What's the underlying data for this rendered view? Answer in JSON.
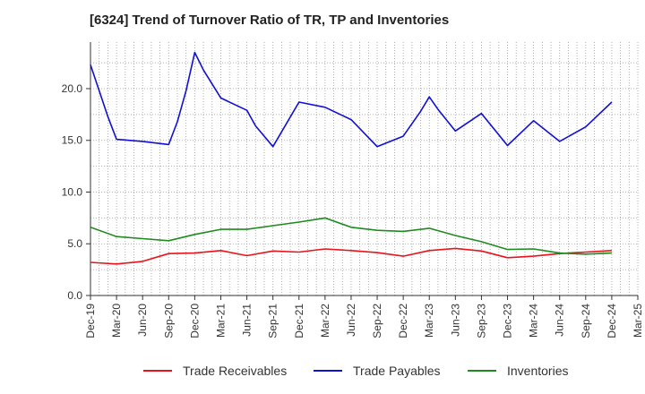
{
  "title": "[6324]  Trend of Turnover Ratio of TR, TP and Inventories",
  "chart_data": {
    "type": "line",
    "title": "[6324]  Trend of Turnover Ratio of TR, TP and Inventories",
    "xlabel": "",
    "ylabel": "",
    "ylim": [
      0,
      24.5
    ],
    "yticks": [
      "0.0",
      "5.0",
      "10.0",
      "15.0",
      "20.0"
    ],
    "ytick_values": [
      0,
      5,
      10,
      15,
      20
    ],
    "xticks": [
      "Dec-19",
      "Mar-20",
      "Jun-20",
      "Sep-20",
      "Dec-20",
      "Mar-21",
      "Jun-21",
      "Sep-21",
      "Dec-21",
      "Mar-22",
      "Jun-22",
      "Sep-22",
      "Dec-22",
      "Mar-23",
      "Jun-23",
      "Sep-23",
      "Dec-23",
      "Mar-24",
      "Jun-24",
      "Sep-24",
      "Dec-24",
      "Mar-25"
    ],
    "grid": "dotted vertical and horizontal",
    "legend_position": "bottom",
    "series": [
      {
        "name": "Trade Receivables",
        "color": "#e8141c",
        "points": [
          [
            "Dec-19",
            3.2
          ],
          [
            "Mar-20",
            3.05
          ],
          [
            "Jun-20",
            3.3
          ],
          [
            "Sep-20",
            4.05
          ],
          [
            "Dec-20",
            4.1
          ],
          [
            "Mar-21",
            4.35
          ],
          [
            "Jun-21",
            3.85
          ],
          [
            "Sep-21",
            4.3
          ],
          [
            "Dec-21",
            4.2
          ],
          [
            "Mar-22",
            4.5
          ],
          [
            "Jun-22",
            4.35
          ],
          [
            "Sep-22",
            4.15
          ],
          [
            "Dec-22",
            3.8
          ],
          [
            "Mar-23",
            4.35
          ],
          [
            "Jun-23",
            4.55
          ],
          [
            "Sep-23",
            4.3
          ],
          [
            "Dec-23",
            3.65
          ],
          [
            "Mar-24",
            3.8
          ],
          [
            "Jun-24",
            4.05
          ],
          [
            "Sep-24",
            4.2
          ],
          [
            "Dec-24",
            4.35
          ]
        ]
      },
      {
        "name": "Trade Payables",
        "color": "#1010d6",
        "points": [
          [
            "Dec-19",
            22.3
          ],
          [
            "Jan-20",
            19.8
          ],
          [
            "Feb-20",
            17.3
          ],
          [
            "Mar-20",
            15.1
          ],
          [
            "Jun-20",
            14.9
          ],
          [
            "Sep-20",
            14.6
          ],
          [
            "Oct-20",
            16.8
          ],
          [
            "Nov-20",
            19.8
          ],
          [
            "Dec-20",
            23.5
          ],
          [
            "Jan-21",
            21.8
          ],
          [
            "Mar-21",
            19.1
          ],
          [
            "Jun-21",
            17.9
          ],
          [
            "Jul-21",
            16.4
          ],
          [
            "Sep-21",
            14.4
          ],
          [
            "Dec-21",
            18.7
          ],
          [
            "Mar-22",
            18.2
          ],
          [
            "Jun-22",
            17.0
          ],
          [
            "Sep-22",
            14.4
          ],
          [
            "Dec-22",
            15.4
          ],
          [
            "Feb-23",
            17.8
          ],
          [
            "Mar-23",
            19.2
          ],
          [
            "Apr-23",
            18.0
          ],
          [
            "Jun-23",
            15.9
          ],
          [
            "Sep-23",
            17.6
          ],
          [
            "Dec-23",
            14.5
          ],
          [
            "Mar-24",
            16.9
          ],
          [
            "Jun-24",
            14.9
          ],
          [
            "Sep-24",
            16.3
          ],
          [
            "Dec-24",
            18.7
          ]
        ]
      },
      {
        "name": "Inventories",
        "color": "#1f8a1f",
        "points": [
          [
            "Dec-19",
            6.6
          ],
          [
            "Mar-20",
            5.7
          ],
          [
            "Jun-20",
            5.5
          ],
          [
            "Sep-20",
            5.3
          ],
          [
            "Dec-20",
            5.9
          ],
          [
            "Mar-21",
            6.4
          ],
          [
            "Jun-21",
            6.4
          ],
          [
            "Sep-21",
            6.75
          ],
          [
            "Dec-21",
            7.1
          ],
          [
            "Mar-22",
            7.5
          ],
          [
            "Jun-22",
            6.6
          ],
          [
            "Sep-22",
            6.3
          ],
          [
            "Dec-22",
            6.2
          ],
          [
            "Mar-23",
            6.5
          ],
          [
            "Jun-23",
            5.8
          ],
          [
            "Sep-23",
            5.2
          ],
          [
            "Dec-23",
            4.45
          ],
          [
            "Mar-24",
            4.5
          ],
          [
            "Jun-24",
            4.1
          ],
          [
            "Sep-24",
            4.0
          ],
          [
            "Dec-24",
            4.1
          ]
        ]
      }
    ]
  }
}
